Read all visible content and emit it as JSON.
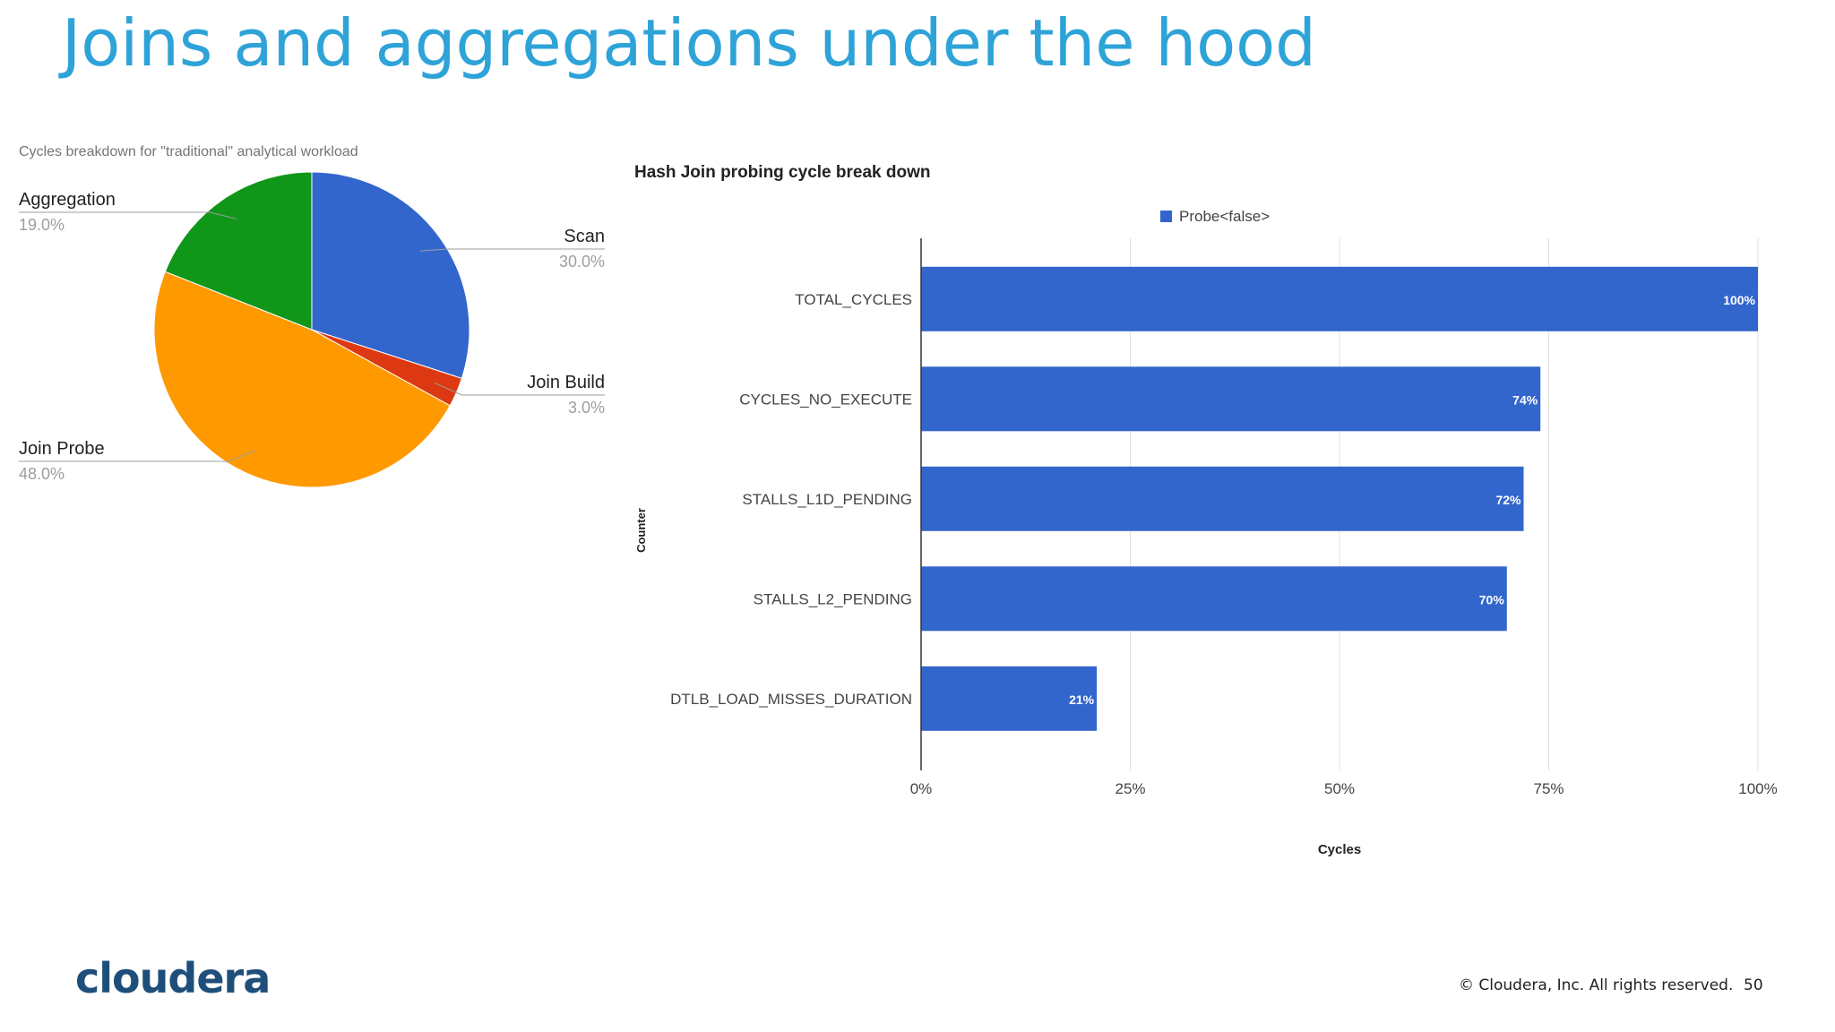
{
  "slide": {
    "title": "Joins and aggregations under the hood",
    "logo_text": "cloudera",
    "copyright": "© Cloudera, Inc. All rights reserved.",
    "page_number": "50"
  },
  "colors": {
    "title": "#2ea3d8",
    "logo": "#1e4f7a",
    "scan": "#3366cc",
    "join_build": "#dc3912",
    "join_probe": "#ff9900",
    "aggregation": "#109618",
    "bar": "#3366cc"
  },
  "chart_data": [
    {
      "type": "pie",
      "title": "Cycles breakdown for \"traditional\" analytical workload",
      "slices": [
        {
          "label": "Scan",
          "value": 30.0,
          "value_label": "30.0%",
          "color": "#3366cc"
        },
        {
          "label": "Join Build",
          "value": 3.0,
          "value_label": "3.0%",
          "color": "#dc3912"
        },
        {
          "label": "Join Probe",
          "value": 48.0,
          "value_label": "48.0%",
          "color": "#ff9900"
        },
        {
          "label": "Aggregation",
          "value": 19.0,
          "value_label": "19.0%",
          "color": "#109618"
        }
      ],
      "legend": "none"
    },
    {
      "type": "bar",
      "orientation": "horizontal",
      "title": "Hash Join probing cycle break down",
      "xlabel": "Cycles",
      "ylabel": "Counter",
      "categories": [
        "TOTAL_CYCLES",
        "CYCLES_NO_EXECUTE",
        "STALLS_L1D_PENDING",
        "STALLS_L2_PENDING",
        "DTLB_LOAD_MISSES_DURATION"
      ],
      "series": [
        {
          "name": "Probe<false>",
          "values": [
            100,
            74,
            72,
            70,
            21
          ],
          "data_labels": [
            "100%",
            "74%",
            "72%",
            "70%",
            "21%"
          ],
          "color": "#3366cc"
        }
      ],
      "xlim": [
        0,
        100
      ],
      "x_ticks": [
        0,
        25,
        50,
        75,
        100
      ],
      "x_tick_labels": [
        "0%",
        "25%",
        "50%",
        "75%",
        "100%"
      ],
      "grid": true,
      "legend": "top"
    }
  ]
}
